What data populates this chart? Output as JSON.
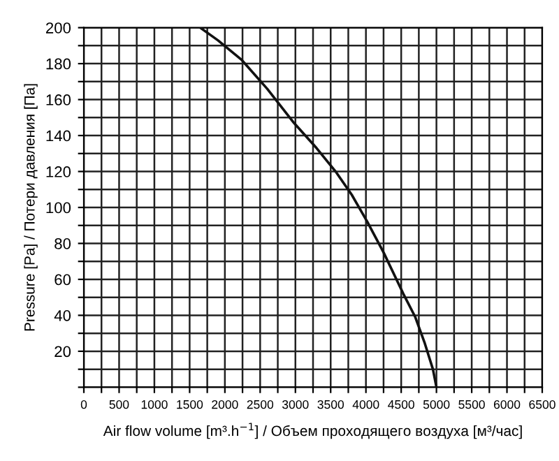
{
  "chart_data": {
    "type": "line",
    "xlabel": "Air flow volume [m³.h$^{−1}$] / Объем проходящего воздуха [м³/час]",
    "ylabel": "Pressure [Pa] / Потери давления [Па]",
    "x": [
      1650,
      1900,
      2240,
      2600,
      2980,
      3300,
      3570,
      3800,
      4020,
      4250,
      4530,
      4700,
      4830,
      4950,
      5000
    ],
    "series": [
      {
        "color": "#111111",
        "values": [
          200,
          193,
          182,
          166,
          147,
          133,
          120,
          107,
          92,
          75,
          52,
          39,
          25,
          10,
          0
        ]
      }
    ],
    "xlim": [
      0,
      6500
    ],
    "ylim": [
      0,
      200
    ],
    "xticks": [
      0,
      {
        "value": 250,
        "label": null
      },
      500,
      {
        "value": 750,
        "label": null
      },
      1000,
      {
        "value": 1250,
        "label": null
      },
      1500,
      {
        "value": 1750,
        "label": null
      },
      2000,
      {
        "value": 2250,
        "label": null
      },
      2500,
      {
        "value": 2750,
        "label": null
      },
      3000,
      {
        "value": 3250,
        "label": null
      },
      3500,
      {
        "value": 3750,
        "label": null
      },
      4000,
      {
        "value": 4250,
        "label": null
      },
      4500,
      {
        "value": 4750,
        "label": null
      },
      5000,
      {
        "value": 5250,
        "label": null
      },
      5500,
      {
        "value": 5750,
        "label": null
      },
      6000,
      {
        "value": 6250,
        "label": null
      },
      6500
    ],
    "yticks": [
      {
        "value": 0,
        "label": null
      },
      {
        "value": 10,
        "label": null
      },
      20,
      {
        "value": 30,
        "label": null
      },
      40,
      {
        "value": 50,
        "label": null
      },
      60,
      {
        "value": 70,
        "label": null
      },
      80,
      {
        "value": 90,
        "label": null
      },
      100,
      {
        "value": 110,
        "label": null
      },
      120,
      {
        "value": 130,
        "label": null
      },
      140,
      {
        "value": 150,
        "label": null
      },
      160,
      {
        "value": 170,
        "label": null
      },
      180,
      {
        "value": 190,
        "label": null
      },
      200
    ],
    "grid": true,
    "marker": "none",
    "line_style": "solid"
  }
}
